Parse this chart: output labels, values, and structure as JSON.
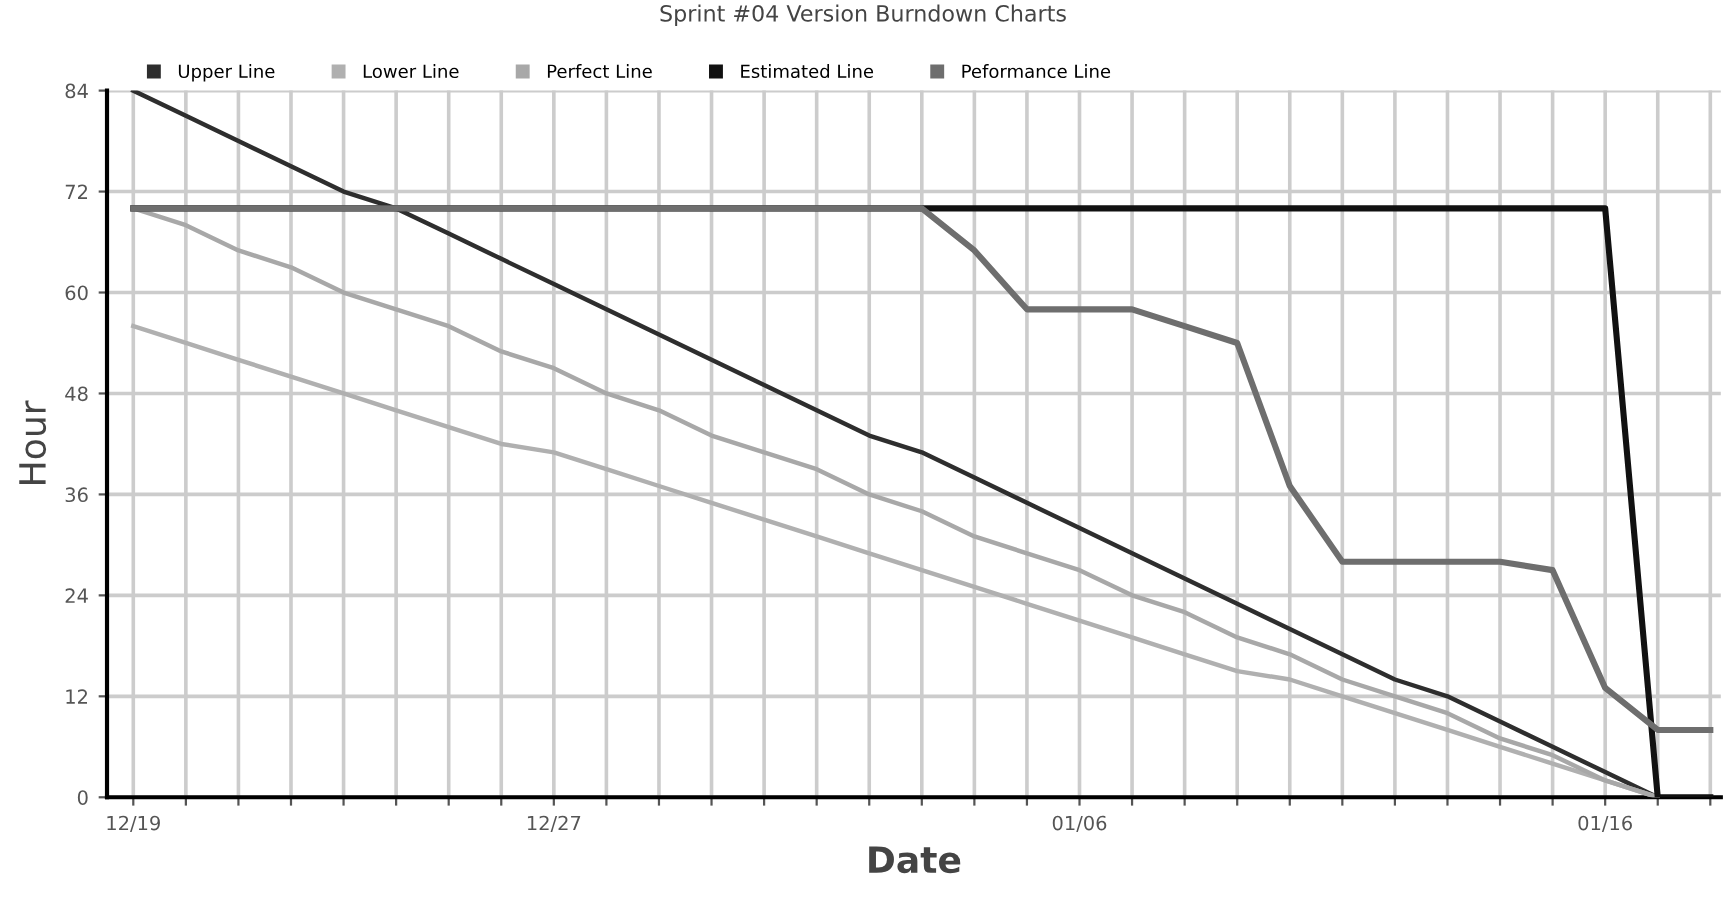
{
  "chart_data": {
    "type": "line",
    "title": "Sprint #04 Version Burndown Charts",
    "xlabel": "Date",
    "ylabel": "Hour",
    "ylim": [
      0,
      84
    ],
    "yticks": [
      0,
      12,
      24,
      36,
      48,
      60,
      72,
      84
    ],
    "categories": [
      "12/19",
      null,
      null,
      null,
      null,
      null,
      null,
      null,
      "12/27",
      null,
      null,
      null,
      null,
      null,
      null,
      null,
      null,
      null,
      "01/06",
      null,
      null,
      null,
      null,
      null,
      null,
      null,
      null,
      null,
      "01/16",
      null,
      null
    ],
    "grid": true,
    "legend": "top",
    "marker": "none",
    "line_style": "solid",
    "series": [
      {
        "name": "Upper Line",
        "color": "#2e2e2e",
        "values": [
          84,
          81,
          78,
          75,
          72,
          70,
          67,
          64,
          61,
          58,
          55,
          52,
          49,
          46,
          43,
          41,
          38,
          35,
          32,
          29,
          26,
          23,
          20,
          17,
          14,
          12,
          9,
          6,
          3,
          0,
          null
        ]
      },
      {
        "name": "Lower Line",
        "color": "#b0b0b0",
        "values": [
          56,
          54,
          52,
          50,
          48,
          46,
          44,
          42,
          41,
          39,
          37,
          35,
          33,
          31,
          29,
          27,
          25,
          23,
          21,
          19,
          17,
          15,
          14,
          12,
          10,
          8,
          6,
          4,
          2,
          0,
          null
        ]
      },
      {
        "name": "Perfect Line",
        "color": "#a8a8a8",
        "values": [
          70,
          68,
          65,
          63,
          60,
          58,
          56,
          53,
          51,
          48,
          46,
          43,
          41,
          39,
          36,
          34,
          31,
          29,
          27,
          24,
          22,
          19,
          17,
          14,
          12,
          10,
          7,
          5,
          2,
          0,
          null
        ]
      },
      {
        "name": "Estimated Line",
        "color": "#111111",
        "values": [
          70,
          70,
          70,
          70,
          70,
          70,
          70,
          70,
          70,
          70,
          70,
          70,
          70,
          70,
          70,
          70,
          70,
          70,
          70,
          70,
          70,
          70,
          70,
          70,
          70,
          70,
          70,
          70,
          70,
          0,
          0
        ]
      },
      {
        "name": "Peformance Line",
        "color": "#6e6e6e",
        "values": [
          70,
          70,
          70,
          70,
          70,
          70,
          70,
          70,
          70,
          70,
          70,
          70,
          70,
          70,
          70,
          70,
          65,
          58,
          58,
          58,
          56,
          54,
          37,
          28,
          28,
          28,
          28,
          27,
          13,
          8,
          8
        ]
      }
    ]
  }
}
